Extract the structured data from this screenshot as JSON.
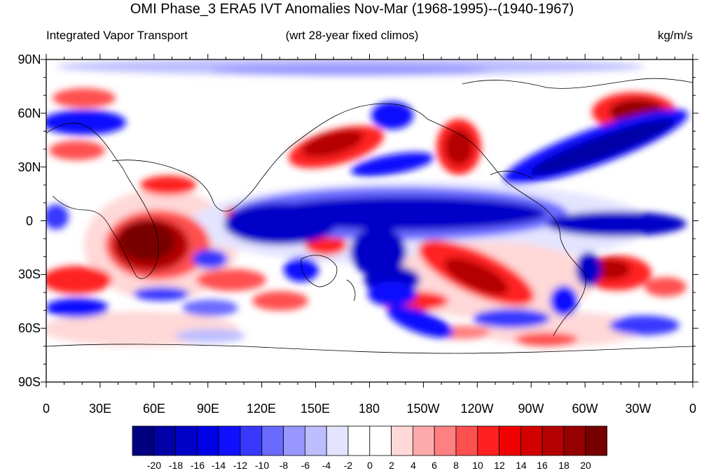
{
  "title": "OMI Phase_3 ERA5 IVT Anomalies Nov-Mar (1968-1995)--(1940-1967)",
  "subtitle_left": "Integrated Vapor Transport",
  "subtitle_center": "(wrt 28-year fixed climos)",
  "subtitle_right": "kg/m/s",
  "map": {
    "lon_ticks": [
      "0",
      "30E",
      "60E",
      "90E",
      "120E",
      "150E",
      "180",
      "150W",
      "120W",
      "90W",
      "60W",
      "30W",
      "0"
    ],
    "lat_ticks": [
      "90N",
      "60N",
      "30N",
      "0",
      "30S",
      "60S",
      "90S"
    ],
    "lat_range": [
      -90,
      90
    ],
    "lon_range": [
      0,
      360
    ]
  },
  "colorbar": {
    "labels": [
      "-20",
      "-18",
      "-16",
      "-14",
      "-12",
      "-10",
      "-8",
      "-6",
      "-4",
      "-2",
      "0",
      "2",
      "4",
      "6",
      "8",
      "10",
      "12",
      "14",
      "16",
      "18",
      "20"
    ],
    "colors": [
      "#000080",
      "#0000a6",
      "#0000c8",
      "#0000e6",
      "#1010ff",
      "#3838ff",
      "#6a6aff",
      "#9797ff",
      "#bdbdff",
      "#e4e4ff",
      "#ffffff",
      "#ffffff",
      "#ffd8d8",
      "#ffaaaa",
      "#ff8080",
      "#ff5050",
      "#ff2020",
      "#f00000",
      "#d40000",
      "#b40000",
      "#960000",
      "#780000"
    ]
  },
  "anomaly_regions": [
    {
      "color": "#780000"
    },
    {
      "color": "#b40000"
    },
    {
      "color": "#d40000"
    },
    {
      "color": "#f00000"
    },
    {
      "color": "#ff5050"
    },
    {
      "color": "#ff8080"
    },
    {
      "color": "#ffaaaa"
    },
    {
      "color": "#ffd8d8"
    },
    {
      "color": "#0000a6"
    },
    {
      "color": "#0000c8"
    },
    {
      "color": "#1010ff"
    },
    {
      "color": "#3838ff"
    },
    {
      "color": "#6a6aff"
    },
    {
      "color": "#9797ff"
    },
    {
      "color": "#bdbdff"
    },
    {
      "color": "#e4e4ff"
    }
  ]
}
